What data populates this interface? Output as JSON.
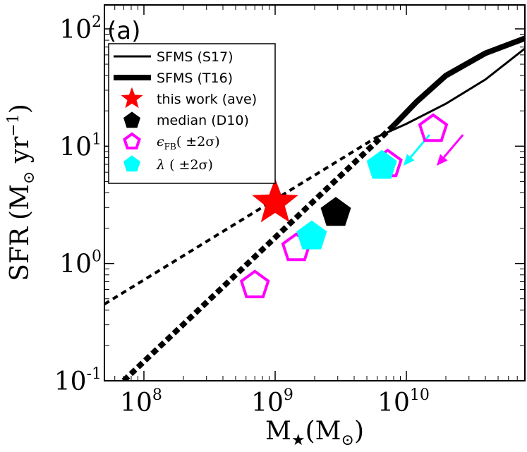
{
  "chart_data": {
    "type": "scatter",
    "panel_label": "(a)",
    "x_axis": {
      "scale": "log",
      "range": [
        50000000,
        80000000000
      ],
      "label_main": "M",
      "label_sub": "★",
      "label_unit_open": "(M",
      "label_unit_sub": "⊙",
      "label_unit_close": ")",
      "ticks": [
        {
          "value": 100000000,
          "base": "10",
          "exp": "8"
        },
        {
          "value": 1000000000,
          "base": "10",
          "exp": "9"
        },
        {
          "value": 10000000000,
          "base": "10",
          "exp": "10"
        }
      ]
    },
    "y_axis": {
      "scale": "log",
      "range": [
        0.1,
        160
      ],
      "label_main": "SFR",
      "label_unit_open": "(M",
      "label_unit_sub": "⊙",
      "label_unit_mid": " yr",
      "label_unit_exp": "−1",
      "label_unit_close": ")",
      "ticks": [
        {
          "value": 0.1,
          "base": "10",
          "exp": "-1"
        },
        {
          "value": 1,
          "base": "10",
          "exp": "0"
        },
        {
          "value": 10,
          "base": "10",
          "exp": "1"
        },
        {
          "value": 100,
          "base": "10",
          "exp": "2"
        }
      ]
    },
    "lines": [
      {
        "name": "SFMS (S17) solid",
        "style": "solid",
        "width": 3,
        "points": [
          [
            6000000000,
            12
          ],
          [
            10000000000,
            15.5
          ],
          [
            20000000000,
            23
          ],
          [
            40000000000,
            37
          ],
          [
            80000000000,
            68
          ]
        ]
      },
      {
        "name": "SFMS (S17) extrapolated",
        "style": "dashed",
        "width": 4,
        "points": [
          [
            50000000,
            0.45
          ],
          [
            6000000000,
            12
          ]
        ]
      },
      {
        "name": "SFMS (T16) solid",
        "style": "solid",
        "width": 8,
        "points": [
          [
            8000000000,
            15
          ],
          [
            12000000000,
            24
          ],
          [
            20000000000,
            40
          ],
          [
            40000000000,
            62
          ],
          [
            80000000000,
            83
          ]
        ]
      },
      {
        "name": "SFMS (T16) extrapolated",
        "style": "dashed",
        "width": 8,
        "points": [
          [
            70000000,
            0.1
          ],
          [
            8000000000,
            15
          ]
        ]
      }
    ],
    "series": [
      {
        "name": "this work (ave)",
        "marker": "star",
        "color": "#ff0000",
        "filled": true,
        "points": [
          {
            "x": 1000000000,
            "y": 3.3,
            "xerr": [
              840000000,
              1190000000
            ]
          }
        ]
      },
      {
        "name": "median (D10)",
        "marker": "pentagon",
        "color": "#000000",
        "filled": true,
        "points": [
          {
            "x": 2900000000,
            "y": 2.7
          }
        ]
      },
      {
        "name": "eps_FB (±2σ)",
        "marker": "pentagon",
        "color": "#ff00ff",
        "filled": false,
        "points": [
          {
            "x": 700000000,
            "y": 0.65
          },
          {
            "x": 1450000000,
            "y": 1.35
          },
          {
            "x": 7200000000,
            "y": 7.0
          },
          {
            "x": 16000000000,
            "y": 14.0
          }
        ]
      },
      {
        "name": "lambda (±2σ)",
        "marker": "pentagon",
        "color": "#00ffff",
        "filled": true,
        "points": [
          {
            "x": 1900000000,
            "y": 1.7
          },
          {
            "x": 6500000000,
            "y": 6.8
          }
        ]
      }
    ],
    "arrows": [
      {
        "color": "#00ffff",
        "from": [
          15000000000,
          12.5
        ],
        "to": [
          9500000000,
          6.8
        ]
      },
      {
        "color": "#ff00ff",
        "from": [
          27000000000,
          12.5
        ],
        "to": [
          17000000000,
          6.8
        ]
      }
    ],
    "legend": {
      "placement": "top-left",
      "entries": [
        {
          "id": "s17",
          "label": "SFMS (S17)"
        },
        {
          "id": "t16",
          "label": "SFMS (T16)"
        },
        {
          "id": "ave",
          "label": "this work (ave)"
        },
        {
          "id": "d10",
          "label": "median (D10)"
        },
        {
          "id": "eps",
          "label_sym": "ϵ",
          "label_sub": "FB",
          "label_rest": "( ±2σ)"
        },
        {
          "id": "lam",
          "label_sym": "λ",
          "label_rest": " ( ±2σ)"
        }
      ]
    }
  }
}
